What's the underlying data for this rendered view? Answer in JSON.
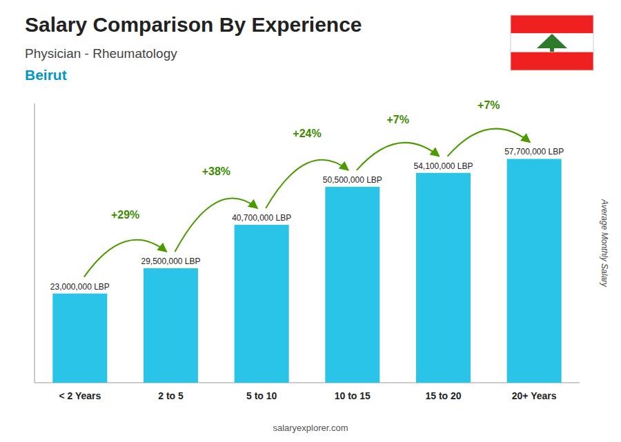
{
  "chart_data": {
    "type": "bar",
    "title": "Salary Comparison By Experience",
    "subtitle": "Physician - Rheumatology",
    "city": "Beirut",
    "ylabel": "Average Monthly Salary",
    "categories": [
      "< 2 Years",
      "2 to 5",
      "5 to 10",
      "10 to 15",
      "15 to 20",
      "20+ Years"
    ],
    "values": [
      23000000,
      29500000,
      40700000,
      50500000,
      54100000,
      57700000
    ],
    "value_labels": [
      "23,000,000 LBP",
      "29,500,000 LBP",
      "40,700,000 LBP",
      "50,500,000 LBP",
      "54,100,000 LBP",
      "57,700,000 LBP"
    ],
    "annotations": [
      "+29%",
      "+38%",
      "+24%",
      "+7%",
      "+7%"
    ],
    "source": "salaryexplorer.com",
    "color": "#29C4E8",
    "ylim": [
      0,
      72000000
    ],
    "data_labels": true,
    "tick_labels": "x",
    "grid": false
  }
}
